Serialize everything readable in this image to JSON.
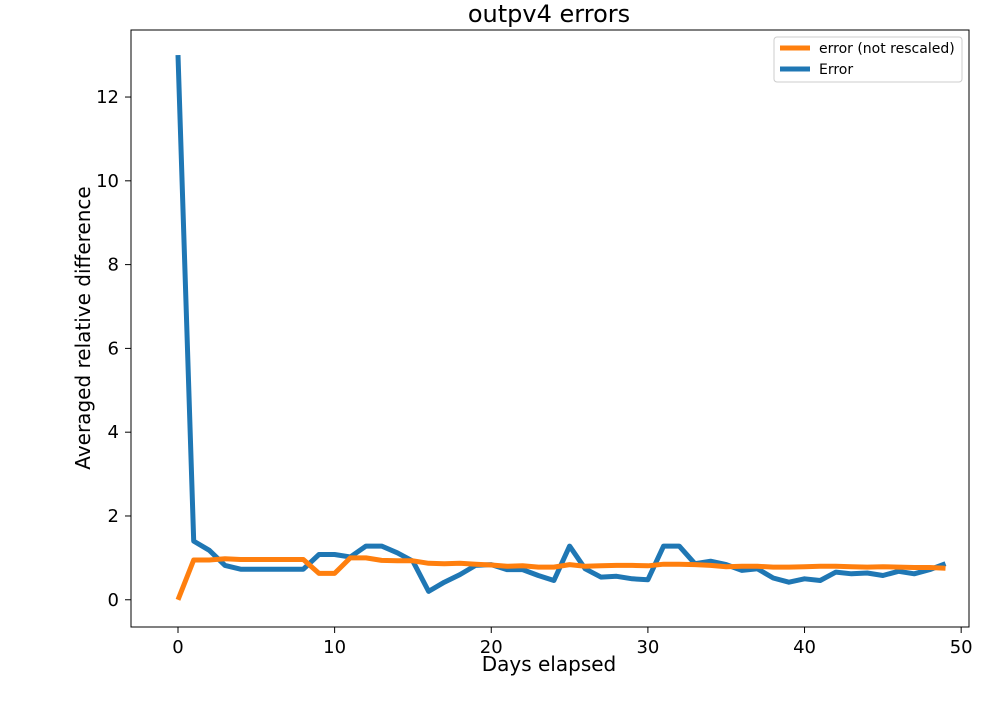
{
  "chart_data": {
    "type": "line",
    "title": "outpv4 errors",
    "xlabel": "Days elapsed",
    "ylabel": "Averaged relative difference",
    "xlim": [
      -3,
      50.5
    ],
    "ylim": [
      -0.65,
      13.6
    ],
    "xticks": [
      0,
      10,
      20,
      30,
      40,
      50
    ],
    "yticks": [
      0,
      2,
      4,
      6,
      8,
      10,
      12
    ],
    "grid": false,
    "legend_position": "top-right",
    "x": [
      0,
      1,
      2,
      3,
      4,
      5,
      6,
      7,
      8,
      9,
      10,
      11,
      12,
      13,
      14,
      15,
      16,
      17,
      18,
      19,
      20,
      21,
      22,
      23,
      24,
      25,
      26,
      27,
      28,
      29,
      30,
      31,
      32,
      33,
      34,
      35,
      36,
      37,
      38,
      39,
      40,
      41,
      42,
      43,
      44,
      45,
      46,
      47,
      48,
      49
    ],
    "series": [
      {
        "name": "error (not rescaled)",
        "color": "#ff7f0e",
        "values": [
          0.0,
          0.95,
          0.95,
          0.98,
          0.96,
          0.96,
          0.96,
          0.96,
          0.96,
          0.63,
          0.63,
          1.0,
          1.0,
          0.94,
          0.93,
          0.93,
          0.87,
          0.86,
          0.87,
          0.85,
          0.83,
          0.8,
          0.81,
          0.78,
          0.78,
          0.84,
          0.8,
          0.81,
          0.82,
          0.82,
          0.81,
          0.85,
          0.85,
          0.84,
          0.82,
          0.79,
          0.8,
          0.8,
          0.78,
          0.78,
          0.79,
          0.8,
          0.8,
          0.79,
          0.78,
          0.79,
          0.78,
          0.77,
          0.77,
          0.75
        ]
      },
      {
        "name": "Error",
        "color": "#1f77b4",
        "values": [
          13.0,
          1.4,
          1.18,
          0.82,
          0.73,
          0.73,
          0.73,
          0.73,
          0.73,
          1.08,
          1.08,
          1.02,
          1.28,
          1.28,
          1.12,
          0.92,
          0.2,
          0.42,
          0.6,
          0.82,
          0.84,
          0.72,
          0.72,
          0.58,
          0.46,
          1.28,
          0.74,
          0.54,
          0.56,
          0.5,
          0.48,
          1.28,
          1.28,
          0.86,
          0.92,
          0.84,
          0.7,
          0.74,
          0.52,
          0.42,
          0.5,
          0.46,
          0.66,
          0.62,
          0.64,
          0.58,
          0.68,
          0.62,
          0.72,
          0.86
        ]
      }
    ],
    "legend_order": [
      "error (not rescaled)",
      "Error"
    ]
  }
}
